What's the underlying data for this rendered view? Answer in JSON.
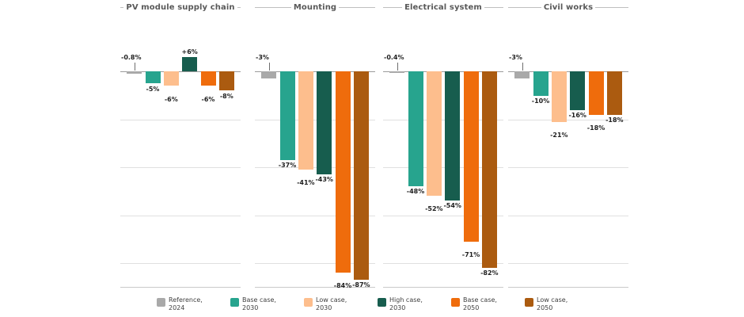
{
  "figure": {
    "background": "#ffffff",
    "text_color": "#595959"
  },
  "chart_data": {
    "type": "bar",
    "orientation": "vertical",
    "unit": "% change",
    "ylim": [
      20,
      -90
    ],
    "gridlines": [
      0,
      -20,
      -40,
      -60,
      -80
    ],
    "grid": true,
    "legend_position": "bottom",
    "series_colors": [
      "#a9a9a9",
      "#27a48e",
      "#fdbe8d",
      "#175d4e",
      "#ef6c0c",
      "#ab5b10"
    ],
    "legend": [
      [
        "Reference,",
        "2024"
      ],
      [
        "Base case,",
        "2030"
      ],
      [
        "Low case,",
        "2030"
      ],
      [
        "High case,",
        "2030"
      ],
      [
        "Base case,",
        "2050"
      ],
      [
        "Low case,",
        "2050"
      ]
    ],
    "panels": [
      {
        "title": "PV module supply chain",
        "values": [
          -0.8,
          -5,
          -6,
          6,
          -6,
          -8
        ],
        "labels": [
          "-0.8%",
          "-5%",
          "-6%",
          "+6%",
          "-6%",
          "-8%"
        ]
      },
      {
        "title": "Mounting",
        "values": [
          -3,
          -37,
          -41,
          -43,
          -84,
          -87
        ],
        "labels": [
          "-3%",
          "-37%",
          "-41%",
          "-43%",
          "-84%",
          "-87%"
        ]
      },
      {
        "title": "Electrical system",
        "values": [
          -0.4,
          -48,
          -52,
          -54,
          -71,
          -82
        ],
        "labels": [
          "-0.4%",
          "-48%",
          "-52%",
          "-54%",
          "-71%",
          "-82%"
        ]
      },
      {
        "title": "Civil works",
        "values": [
          -3,
          -10,
          -21,
          -16,
          -18,
          -18
        ],
        "labels": [
          "-3%",
          "-10%",
          "-21%",
          "-16%",
          "-18%",
          "-18%"
        ]
      }
    ]
  }
}
